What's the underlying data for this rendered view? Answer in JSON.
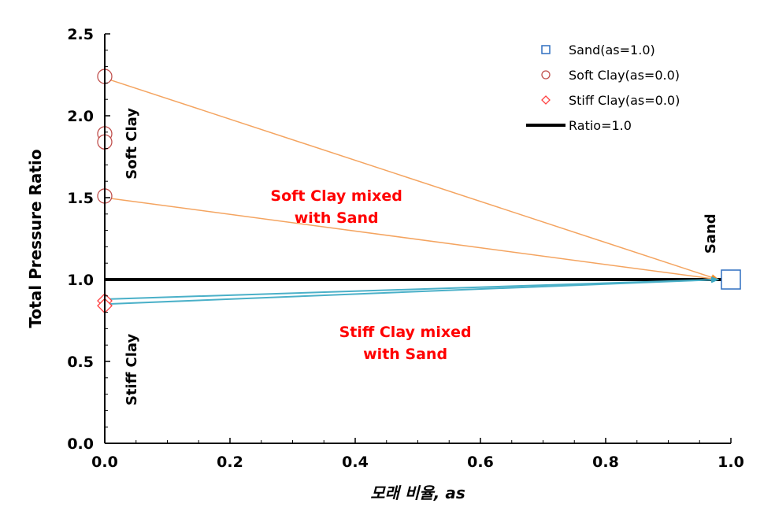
{
  "chart_data": {
    "type": "line",
    "xlabel": "모래 비율, as",
    "ylabel": "Total Pressure Ratio",
    "xlim": [
      0.0,
      1.0
    ],
    "ylim": [
      0.0,
      2.5
    ],
    "x_ticks": [
      "0.0",
      "0.2",
      "0.4",
      "0.6",
      "0.8",
      "1.0"
    ],
    "y_ticks": [
      "0.0",
      "0.5",
      "1.0",
      "1.5",
      "2.0",
      "2.5"
    ],
    "grid": false,
    "legend_position": "top-right",
    "legend": [
      {
        "label": "Sand(as=1.0)",
        "marker": "square",
        "color": "#2f6fc0"
      },
      {
        "label": "Soft Clay(as=0.0)",
        "marker": "circle",
        "color": "#c0504d"
      },
      {
        "label": "Stiff Clay(as=0.0)",
        "marker": "diamond",
        "color": "#ff4040"
      },
      {
        "label": "Ratio=1.0",
        "marker": "line",
        "color": "#000000"
      }
    ],
    "series": [
      {
        "name": "Sand(as=1.0)",
        "marker": "square",
        "points": [
          [
            1.0,
            1.0
          ]
        ]
      },
      {
        "name": "Soft Clay(as=0.0)",
        "marker": "circle",
        "points": [
          [
            0.0,
            2.24
          ],
          [
            0.0,
            1.89
          ],
          [
            0.0,
            1.84
          ],
          [
            0.0,
            1.51
          ]
        ]
      },
      {
        "name": "Stiff Clay(as=0.0)",
        "marker": "diamond",
        "points": [
          [
            0.0,
            0.87
          ],
          [
            0.0,
            0.84
          ]
        ]
      },
      {
        "name": "Ratio=1.0",
        "marker": "line",
        "points": [
          [
            0.0,
            1.0
          ],
          [
            1.0,
            1.0
          ]
        ]
      }
    ],
    "arrows": [
      {
        "from": [
          0.0,
          2.23
        ],
        "to": [
          0.98,
          1.0
        ],
        "color": "#f4a460"
      },
      {
        "from": [
          0.0,
          1.5
        ],
        "to": [
          0.98,
          1.0
        ],
        "color": "#f4a460"
      },
      {
        "from": [
          0.0,
          0.88
        ],
        "to": [
          0.98,
          1.0
        ],
        "color": "#4ab0c8"
      },
      {
        "from": [
          0.0,
          0.85
        ],
        "to": [
          0.98,
          1.0
        ],
        "color": "#4ab0c8"
      }
    ],
    "annotations": [
      {
        "text": "Soft Clay",
        "x": 0.05,
        "y": 1.83,
        "color": "#000000",
        "rotate": true
      },
      {
        "text": "Stiff Clay",
        "x": 0.05,
        "y": 0.45,
        "color": "#000000",
        "rotate": true
      },
      {
        "text": "Sand",
        "x": 0.975,
        "y": 1.28,
        "color": "#000000",
        "rotate": true
      },
      {
        "text": "Soft Clay mixed\nwith Sand",
        "x": 0.37,
        "y": 1.48,
        "color": "#ff0000",
        "rotate": false
      },
      {
        "text": "Stiff Clay mixed\nwith Sand",
        "x": 0.48,
        "y": 0.65,
        "color": "#ff0000",
        "rotate": false
      }
    ]
  }
}
